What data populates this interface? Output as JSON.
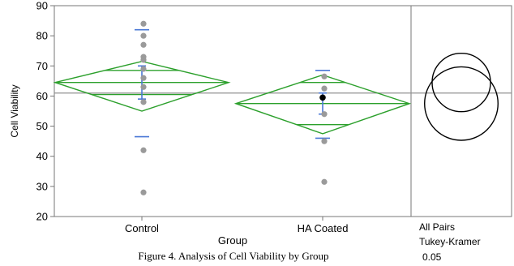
{
  "chart_data": {
    "type": "scatter",
    "title": "",
    "xlabel": "Group",
    "ylabel": "Cell Viability",
    "categories": [
      "Control",
      "HA Coated"
    ],
    "ylim": [
      20,
      90
    ],
    "yticks": [
      20,
      30,
      40,
      50,
      60,
      70,
      80,
      90
    ],
    "grand_mean": 61,
    "groups": [
      {
        "name": "Control",
        "points": [
          84,
          80,
          77,
          73,
          72,
          69,
          66,
          63,
          58,
          42,
          28
        ],
        "mean": 64.5,
        "ci_upper": 71.5,
        "ci_lower": 55,
        "overlap_upper": 68.5,
        "overlap_lower": 60.5,
        "sd_upper": 82,
        "sd_lower": 46.5,
        "se_upper": 70,
        "se_lower": 59
      },
      {
        "name": "HA Coated",
        "points": [
          66.5,
          62.5,
          54,
          45,
          31.5
        ],
        "highlighted_point": 59.5,
        "mean": 57.5,
        "ci_upper": 67,
        "ci_lower": 47.5,
        "overlap_upper": 64.5,
        "overlap_lower": 50.5,
        "sd_upper": 68.5,
        "sd_lower": 46,
        "se_upper": 61,
        "se_lower": 54
      }
    ],
    "comparison": {
      "labels": [
        "All Pairs",
        "Tukey-Kramer",
        "0.05"
      ]
    },
    "colors": {
      "diamond": "#2ca02c",
      "error_bar": "#4a78d6",
      "points": "#9a9a9a",
      "highlight": "#000000",
      "grand_mean_line": "#909090",
      "axis": "#777777",
      "circles": "#000000"
    }
  },
  "caption": "Figure 4. Analysis of Cell Viability by Group"
}
